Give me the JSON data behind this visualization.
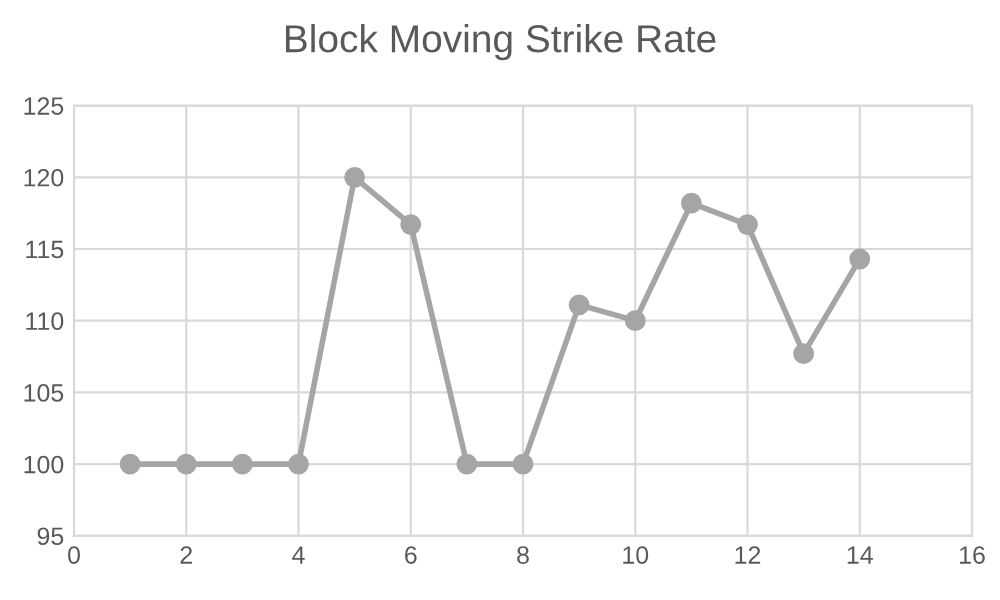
{
  "chart_data": {
    "type": "line",
    "title": "Block Moving Strike Rate",
    "x": [
      1,
      2,
      3,
      4,
      5,
      6,
      7,
      8,
      9,
      10,
      11,
      12,
      13,
      14
    ],
    "series": [
      {
        "color": "#a5a5a5",
        "values": [
          100,
          100,
          100,
          100,
          120,
          116.7,
          100,
          100,
          111.1,
          110,
          118.2,
          116.7,
          107.7,
          114.3
        ]
      }
    ],
    "xlim": [
      0,
      16
    ],
    "xticks": [
      0,
      2,
      4,
      6,
      8,
      10,
      12,
      14,
      16
    ],
    "ylim": [
      95,
      125
    ],
    "yticks": [
      95,
      100,
      105,
      110,
      115,
      120,
      125
    ],
    "grid": true,
    "marker": "circle",
    "line_style": "solid",
    "legend": false
  }
}
